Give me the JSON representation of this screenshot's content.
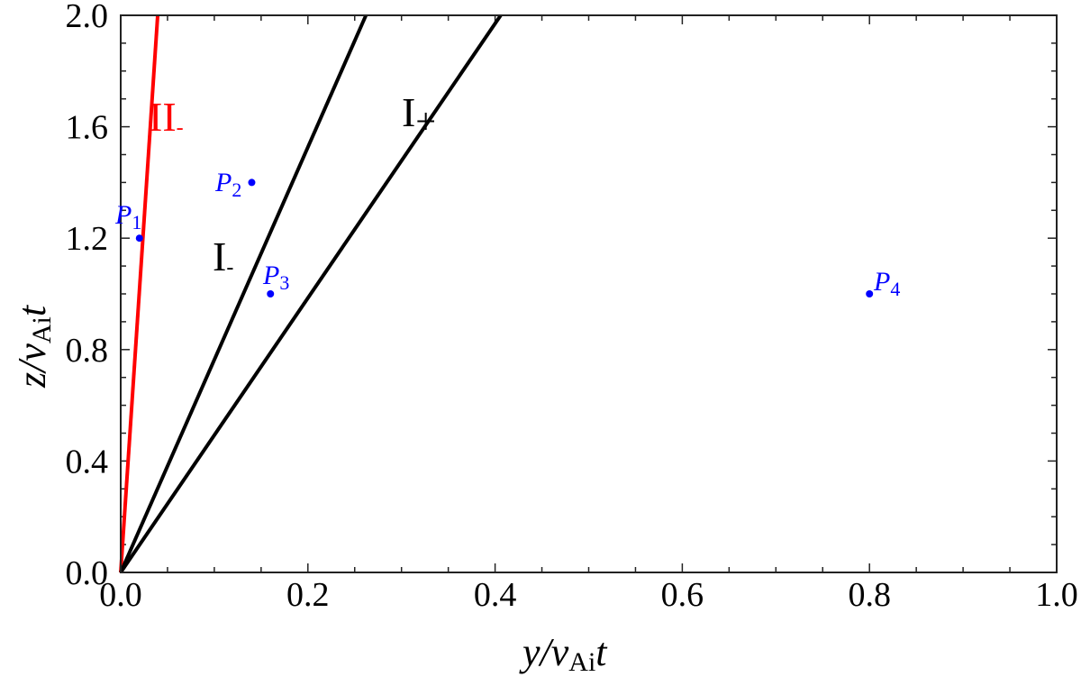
{
  "chart_data": {
    "type": "line",
    "title": "",
    "xlabel": "y/v_Ai t",
    "ylabel": "z/v_Ai t",
    "xlim": [
      0.0,
      1.0
    ],
    "ylim": [
      0.0,
      2.0
    ],
    "x_ticks": [
      "0.0",
      "0.2",
      "0.4",
      "0.6",
      "0.8",
      "1.0"
    ],
    "y_ticks": [
      "0.0",
      "0.4",
      "0.8",
      "1.2",
      "1.6",
      "2.0"
    ],
    "grid": false,
    "series": [
      {
        "name": "II-",
        "color": "#ff0000",
        "x": [
          0.0,
          0.0395
        ],
        "y": [
          0.0,
          2.0
        ]
      },
      {
        "name": "I-",
        "color": "#000000",
        "x": [
          0.0,
          0.262
        ],
        "y": [
          0.0,
          2.0
        ]
      },
      {
        "name": "I+",
        "color": "#000000",
        "x": [
          0.0,
          0.406
        ],
        "y": [
          0.0,
          2.0
        ]
      }
    ],
    "points": [
      {
        "name": "P1",
        "x": 0.02,
        "y": 1.2,
        "color": "#0000ff"
      },
      {
        "name": "P2",
        "x": 0.14,
        "y": 1.4,
        "color": "#0000ff"
      },
      {
        "name": "P3",
        "x": 0.16,
        "y": 1.0,
        "color": "#0000ff"
      },
      {
        "name": "P4",
        "x": 0.8,
        "y": 1.0,
        "color": "#0000ff"
      }
    ],
    "annotations": [
      {
        "text": "II-",
        "color": "#ff0000"
      },
      {
        "text": "I-",
        "color": "#000000"
      },
      {
        "text": "I+",
        "color": "#000000"
      }
    ]
  },
  "labels": {
    "xlabel_main": "y/v",
    "xlabel_sub": "Ai",
    "xlabel_tail": "t",
    "ylabel_main": "z/v",
    "ylabel_sub": "Ai",
    "ylabel_tail": "t",
    "region_II_minus": "II",
    "region_II_minus_sub": "-",
    "region_I_minus": "I",
    "region_I_minus_sub": "-",
    "region_I_plus": "I",
    "region_I_plus_sub": "+",
    "P1": "P",
    "P1_sub": "1",
    "P2": "P",
    "P2_sub": "2",
    "P3": "P",
    "P3_sub": "3",
    "P4": "P",
    "P4_sub": "4"
  }
}
